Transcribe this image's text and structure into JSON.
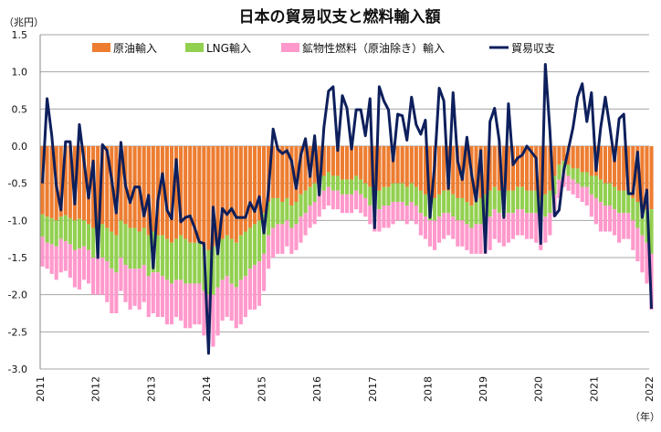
{
  "chart_data": {
    "type": "bar",
    "title": "日本の貿易収支と燃料輸入額",
    "ylabel": "（兆円）",
    "xlabel": "（年）",
    "ylim": [
      -3.0,
      1.5
    ],
    "yticks": [
      "1.5",
      "1.0",
      "0.5",
      "0.0",
      "-0.5",
      "-1.0",
      "-1.5",
      "-2.0",
      "-2.5",
      "-3.0"
    ],
    "ytick_values": [
      1.5,
      1.0,
      0.5,
      0.0,
      -0.5,
      -1.0,
      -1.5,
      -2.0,
      -2.5,
      -3.0
    ],
    "xticks": [
      "2011",
      "2012",
      "2013",
      "2014",
      "2015",
      "2016",
      "2017",
      "2018",
      "2019",
      "2020",
      "2021",
      "2022"
    ],
    "start_month": "2011-01",
    "grid": true,
    "legend_position": "top",
    "legend": [
      "原油輸入",
      "LNG輸入",
      "鉱物性燃料（原油除き）輸入",
      "貿易収支"
    ],
    "colors": {
      "crude": "#ED7D31",
      "lng": "#92D050",
      "other": "#FF99CC",
      "balance": "#0D1F5C",
      "grid": "#A6A6A6"
    },
    "series": [
      {
        "name": "原油輸入",
        "unit": "兆円（輸入額、負方向に積み上げ）",
        "values": [
          0.92,
          0.95,
          0.97,
          1.0,
          0.95,
          0.93,
          0.97,
          1.0,
          0.98,
          1.0,
          1.05,
          1.1,
          1.0,
          1.05,
          1.1,
          1.15,
          1.2,
          1.0,
          1.05,
          1.1,
          1.1,
          1.15,
          1.1,
          1.2,
          1.15,
          1.2,
          1.2,
          1.25,
          1.3,
          1.25,
          1.2,
          1.25,
          1.3,
          1.3,
          1.3,
          1.35,
          1.4,
          1.35,
          1.3,
          1.25,
          1.2,
          1.25,
          1.3,
          1.2,
          1.15,
          1.1,
          1.05,
          1.0,
          0.9,
          0.75,
          0.7,
          0.7,
          0.75,
          0.7,
          0.8,
          0.75,
          0.65,
          0.6,
          0.55,
          0.5,
          0.4,
          0.4,
          0.35,
          0.4,
          0.4,
          0.45,
          0.45,
          0.45,
          0.4,
          0.45,
          0.5,
          0.55,
          0.6,
          0.6,
          0.55,
          0.55,
          0.5,
          0.5,
          0.5,
          0.55,
          0.5,
          0.55,
          0.6,
          0.65,
          0.7,
          0.7,
          0.65,
          0.6,
          0.6,
          0.65,
          0.7,
          0.7,
          0.75,
          0.8,
          0.75,
          0.7,
          0.65,
          0.6,
          0.55,
          0.6,
          0.65,
          0.6,
          0.6,
          0.55,
          0.55,
          0.6,
          0.6,
          0.6,
          0.7,
          0.65,
          0.6,
          0.4,
          0.25,
          0.2,
          0.25,
          0.3,
          0.3,
          0.35,
          0.35,
          0.4,
          0.4,
          0.45,
          0.5,
          0.5,
          0.55,
          0.6,
          0.6,
          0.6,
          0.7,
          0.75,
          0.8,
          0.85,
          0.85
        ]
      },
      {
        "name": "LNG輸入",
        "unit": "兆円",
        "values": [
          0.3,
          0.35,
          0.35,
          0.35,
          0.3,
          0.35,
          0.35,
          0.4,
          0.4,
          0.35,
          0.35,
          0.4,
          0.45,
          0.45,
          0.45,
          0.5,
          0.5,
          0.5,
          0.55,
          0.55,
          0.55,
          0.5,
          0.5,
          0.55,
          0.55,
          0.5,
          0.55,
          0.55,
          0.55,
          0.55,
          0.6,
          0.6,
          0.55,
          0.55,
          0.55,
          0.6,
          0.6,
          0.65,
          0.6,
          0.55,
          0.55,
          0.6,
          0.6,
          0.6,
          0.6,
          0.55,
          0.55,
          0.55,
          0.55,
          0.45,
          0.4,
          0.35,
          0.3,
          0.3,
          0.3,
          0.3,
          0.3,
          0.3,
          0.25,
          0.25,
          0.25,
          0.2,
          0.2,
          0.2,
          0.2,
          0.2,
          0.2,
          0.2,
          0.2,
          0.2,
          0.2,
          0.25,
          0.25,
          0.25,
          0.25,
          0.25,
          0.25,
          0.25,
          0.25,
          0.25,
          0.25,
          0.25,
          0.3,
          0.3,
          0.3,
          0.3,
          0.3,
          0.3,
          0.3,
          0.3,
          0.3,
          0.3,
          0.3,
          0.3,
          0.3,
          0.35,
          0.35,
          0.35,
          0.3,
          0.3,
          0.3,
          0.3,
          0.3,
          0.3,
          0.3,
          0.3,
          0.3,
          0.3,
          0.3,
          0.3,
          0.3,
          0.25,
          0.2,
          0.15,
          0.15,
          0.15,
          0.2,
          0.2,
          0.2,
          0.25,
          0.3,
          0.3,
          0.3,
          0.3,
          0.3,
          0.3,
          0.3,
          0.3,
          0.3,
          0.35,
          0.4,
          0.45,
          0.6
        ]
      },
      {
        "name": "鉱物性燃料（原油除き）輸入",
        "unit": "兆円",
        "values": [
          0.4,
          0.35,
          0.4,
          0.45,
          0.45,
          0.4,
          0.45,
          0.5,
          0.55,
          0.45,
          0.45,
          0.5,
          0.55,
          0.5,
          0.55,
          0.6,
          0.55,
          0.45,
          0.5,
          0.55,
          0.5,
          0.55,
          0.5,
          0.55,
          0.55,
          0.6,
          0.55,
          0.6,
          0.55,
          0.5,
          0.55,
          0.6,
          0.6,
          0.55,
          0.55,
          0.6,
          0.65,
          0.7,
          0.65,
          0.55,
          0.55,
          0.5,
          0.55,
          0.6,
          0.55,
          0.55,
          0.6,
          0.6,
          0.5,
          0.45,
          0.4,
          0.4,
          0.4,
          0.35,
          0.35,
          0.35,
          0.35,
          0.3,
          0.3,
          0.3,
          0.3,
          0.25,
          0.25,
          0.25,
          0.25,
          0.25,
          0.25,
          0.25,
          0.25,
          0.25,
          0.25,
          0.25,
          0.3,
          0.3,
          0.3,
          0.3,
          0.3,
          0.25,
          0.25,
          0.25,
          0.25,
          0.25,
          0.3,
          0.3,
          0.35,
          0.4,
          0.35,
          0.35,
          0.3,
          0.3,
          0.35,
          0.35,
          0.35,
          0.35,
          0.4,
          0.4,
          0.45,
          0.45,
          0.4,
          0.4,
          0.4,
          0.4,
          0.35,
          0.35,
          0.35,
          0.35,
          0.35,
          0.4,
          0.4,
          0.35,
          0.3,
          0.3,
          0.25,
          0.2,
          0.2,
          0.2,
          0.2,
          0.2,
          0.25,
          0.3,
          0.35,
          0.4,
          0.35,
          0.35,
          0.35,
          0.4,
          0.35,
          0.35,
          0.4,
          0.45,
          0.5,
          0.55,
          0.75
        ]
      },
      {
        "name": "貿易収支",
        "unit": "兆円",
        "type": "line",
        "values": [
          -0.5,
          0.64,
          0.15,
          -0.53,
          -0.86,
          0.06,
          0.06,
          -0.78,
          0.29,
          -0.2,
          -0.7,
          -0.2,
          -1.5,
          0.02,
          -0.06,
          -0.45,
          -0.9,
          0.05,
          -0.53,
          -0.76,
          -0.55,
          -0.55,
          -0.94,
          -0.66,
          -1.64,
          -0.74,
          -0.37,
          -0.86,
          -0.98,
          -0.18,
          -1.02,
          -0.96,
          -0.94,
          -1.1,
          -1.29,
          -1.31,
          -2.79,
          -0.82,
          -1.45,
          -0.84,
          -0.92,
          -0.84,
          -0.96,
          -0.96,
          -0.96,
          -0.76,
          -0.88,
          -0.68,
          -1.17,
          -0.59,
          0.23,
          -0.04,
          -0.1,
          -0.06,
          -0.2,
          -0.57,
          -0.12,
          0.1,
          -0.41,
          0.14,
          -0.66,
          0.25,
          0.74,
          0.8,
          -0.06,
          0.68,
          0.51,
          -0.04,
          0.49,
          0.49,
          0.14,
          0.64,
          -1.1,
          0.8,
          0.61,
          0.49,
          -0.2,
          0.43,
          0.41,
          0.08,
          0.66,
          0.29,
          0.16,
          0.35,
          -0.96,
          -0.25,
          0.78,
          0.61,
          -0.57,
          0.72,
          -0.2,
          -0.45,
          0.12,
          -0.37,
          -0.74,
          -0.06,
          -1.43,
          0.33,
          0.51,
          0.08,
          -0.96,
          0.57,
          -0.25,
          -0.16,
          -0.12,
          0,
          -0.08,
          -0.16,
          -1.31,
          1.1,
          0.2,
          -0.94,
          -0.86,
          -0.33,
          -0.04,
          0.25,
          0.66,
          0.84,
          0.33,
          0.72,
          -0.33,
          0.25,
          0.66,
          0.25,
          -0.2,
          0.37,
          0.43,
          -0.64,
          -0.64,
          -0.08,
          -0.96,
          -0.59,
          -2.19
        ]
      }
    ]
  }
}
